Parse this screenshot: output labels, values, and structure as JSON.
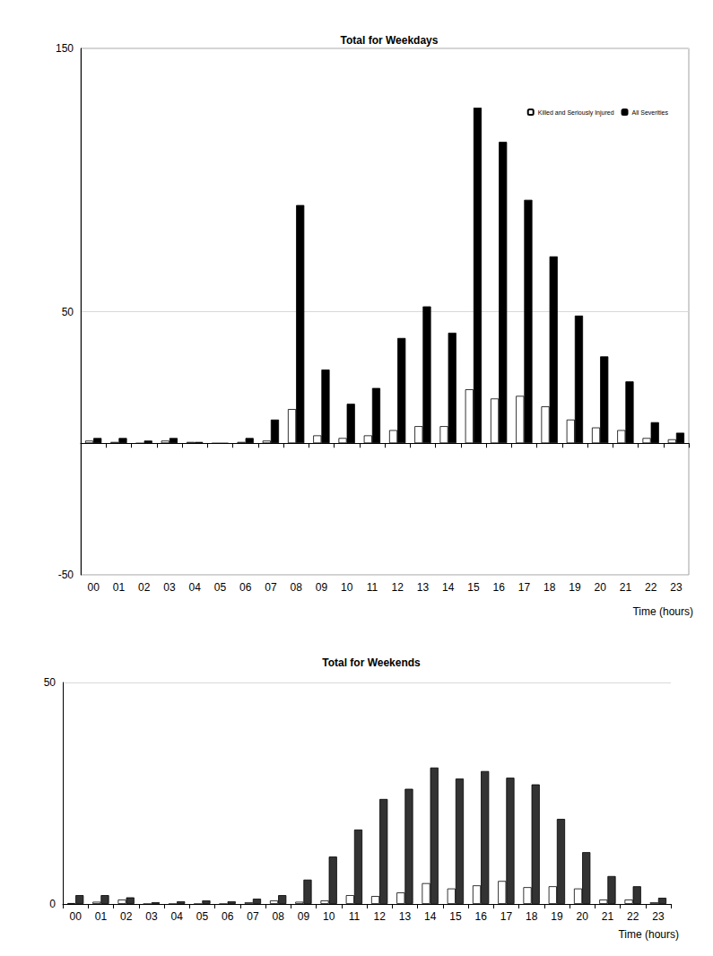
{
  "chart_data": [
    {
      "type": "bar",
      "title": "Total for Weekdays",
      "x_label": "Time (hours)",
      "categories": [
        "00",
        "01",
        "02",
        "03",
        "04",
        "05",
        "06",
        "07",
        "08",
        "09",
        "10",
        "11",
        "12",
        "13",
        "14",
        "15",
        "16",
        "17",
        "18",
        "19",
        "20",
        "21",
        "22",
        "23"
      ],
      "series": [
        {
          "name": "Killed and Seriously Injured",
          "color": "#ffffff",
          "values": [
            1,
            0.5,
            0,
            1,
            0.5,
            0,
            0.5,
            1,
            13,
            3,
            2,
            3,
            5,
            6.5,
            6.5,
            20.5,
            17,
            18,
            14,
            9,
            6,
            5,
            2,
            1.5
          ]
        },
        {
          "name": "All Severities",
          "color": "#000000",
          "values": [
            2,
            2,
            1,
            2,
            0.5,
            0,
            2,
            9,
            90.5,
            28,
            15,
            21,
            40,
            52,
            42,
            127.5,
            114.5,
            92.5,
            71,
            48.5,
            33,
            23.5,
            8,
            4
          ]
        }
      ],
      "ylim": [
        -50,
        150
      ],
      "yticks": [
        -50,
        50,
        150
      ],
      "grid": true,
      "legend": "top-right"
    },
    {
      "type": "bar",
      "title": "Total for Weekends",
      "x_label": "Time (hours)",
      "categories": [
        "00",
        "01",
        "02",
        "03",
        "04",
        "05",
        "06",
        "07",
        "08",
        "09",
        "10",
        "11",
        "12",
        "13",
        "14",
        "15",
        "16",
        "17",
        "18",
        "19",
        "20",
        "21",
        "22",
        "23"
      ],
      "series": [
        {
          "color": "#ffffff",
          "values": [
            0.2,
            0.5,
            1,
            0,
            0,
            0,
            0,
            0.4,
            0.8,
            0.5,
            0.8,
            2,
            1.8,
            2.6,
            4.7,
            3.5,
            4.2,
            5.2,
            3.8,
            4,
            3.5,
            1,
            1,
            0.4
          ]
        },
        {
          "color": "#333333",
          "values": [
            2,
            2,
            1.5,
            0.4,
            0.6,
            0.8,
            0.6,
            1.2,
            2,
            5.5,
            10.7,
            16.8,
            23.7,
            26,
            30.8,
            28.3,
            30,
            28.5,
            27,
            19.2,
            11.7,
            6.3,
            4,
            1.4
          ]
        }
      ],
      "ylim": [
        0,
        50
      ],
      "yticks": [
        0,
        50
      ],
      "grid": true
    }
  ]
}
